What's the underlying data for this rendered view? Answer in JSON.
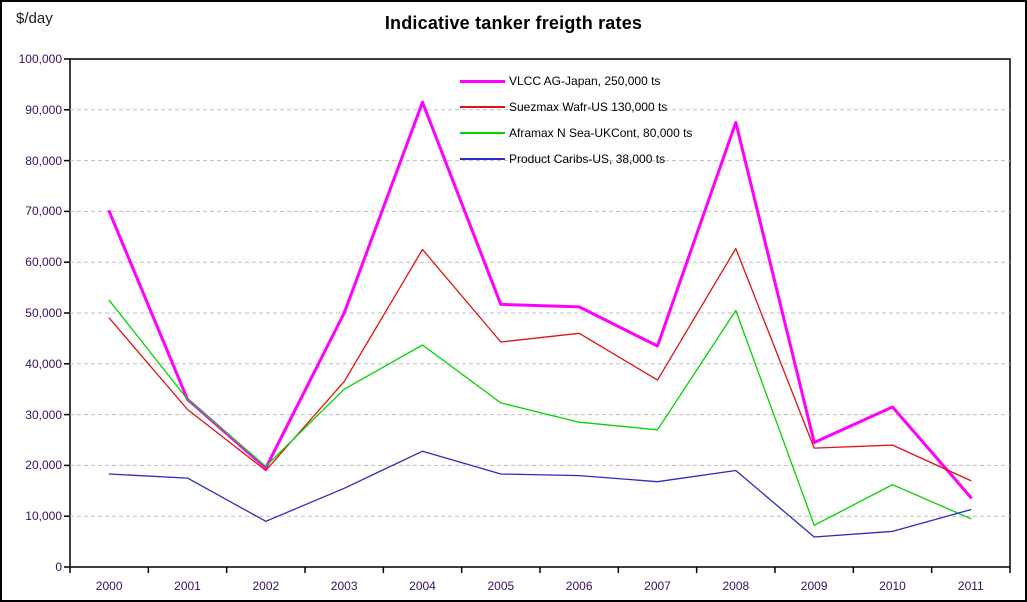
{
  "title": "Indicative tanker freigth rates",
  "y_axis_unit": "$/day",
  "axes": {
    "y_tick_labels_top_down": [
      "100,000",
      "90,000",
      "80,000",
      "70,000",
      "60,000",
      "50,000",
      "40,000",
      "30,000",
      "20,000",
      "10,000",
      "0"
    ],
    "x_tick_labels": [
      "2000",
      "2001",
      "2002",
      "2003",
      "2004",
      "2005",
      "2006",
      "2007",
      "2008",
      "2009",
      "2010",
      "2011"
    ]
  },
  "colors": {
    "grid": "#bfbfbf",
    "axis": "#000000",
    "tick_text": "#3a0e64"
  },
  "chart_data": {
    "type": "line",
    "title": "Indicative tanker freigth rates",
    "ylabel": "$/day",
    "xlabel": "",
    "ylim": [
      0,
      100000
    ],
    "ytick_step": 10000,
    "grid": "horizontal-dashed",
    "legend_position": "inside-top-center",
    "categories": [
      "2000",
      "2001",
      "2002",
      "2003",
      "2004",
      "2005",
      "2006",
      "2007",
      "2008",
      "2009",
      "2010",
      "2011"
    ],
    "series": [
      {
        "name": "VLCC AG-Japan, 250,000 ts",
        "color": "#FF00FF",
        "line_width": 3,
        "values": [
          70000,
          33000,
          19500,
          50000,
          91500,
          51700,
          51200,
          43500,
          87500,
          24500,
          31500,
          13700
        ]
      },
      {
        "name": "Suezmax Wafr-US 130,000 ts",
        "color": "#E01212",
        "line_width": 1.3,
        "values": [
          49000,
          31000,
          19000,
          36500,
          62500,
          44300,
          46000,
          36800,
          62700,
          23400,
          24000,
          17000
        ]
      },
      {
        "name": "Aframax N Sea-UKCont, 80,000 ts",
        "color": "#00D500",
        "line_width": 1.3,
        "values": [
          52500,
          33000,
          19800,
          35000,
          43700,
          32300,
          28500,
          27000,
          50500,
          8200,
          16200,
          9500
        ]
      },
      {
        "name": "Product Caribs-US, 38,000 ts",
        "color": "#2B2BC4",
        "line_width": 1.3,
        "values": [
          18300,
          17500,
          9000,
          15500,
          22800,
          18300,
          18000,
          16800,
          19000,
          5900,
          7000,
          11300
        ]
      }
    ]
  }
}
